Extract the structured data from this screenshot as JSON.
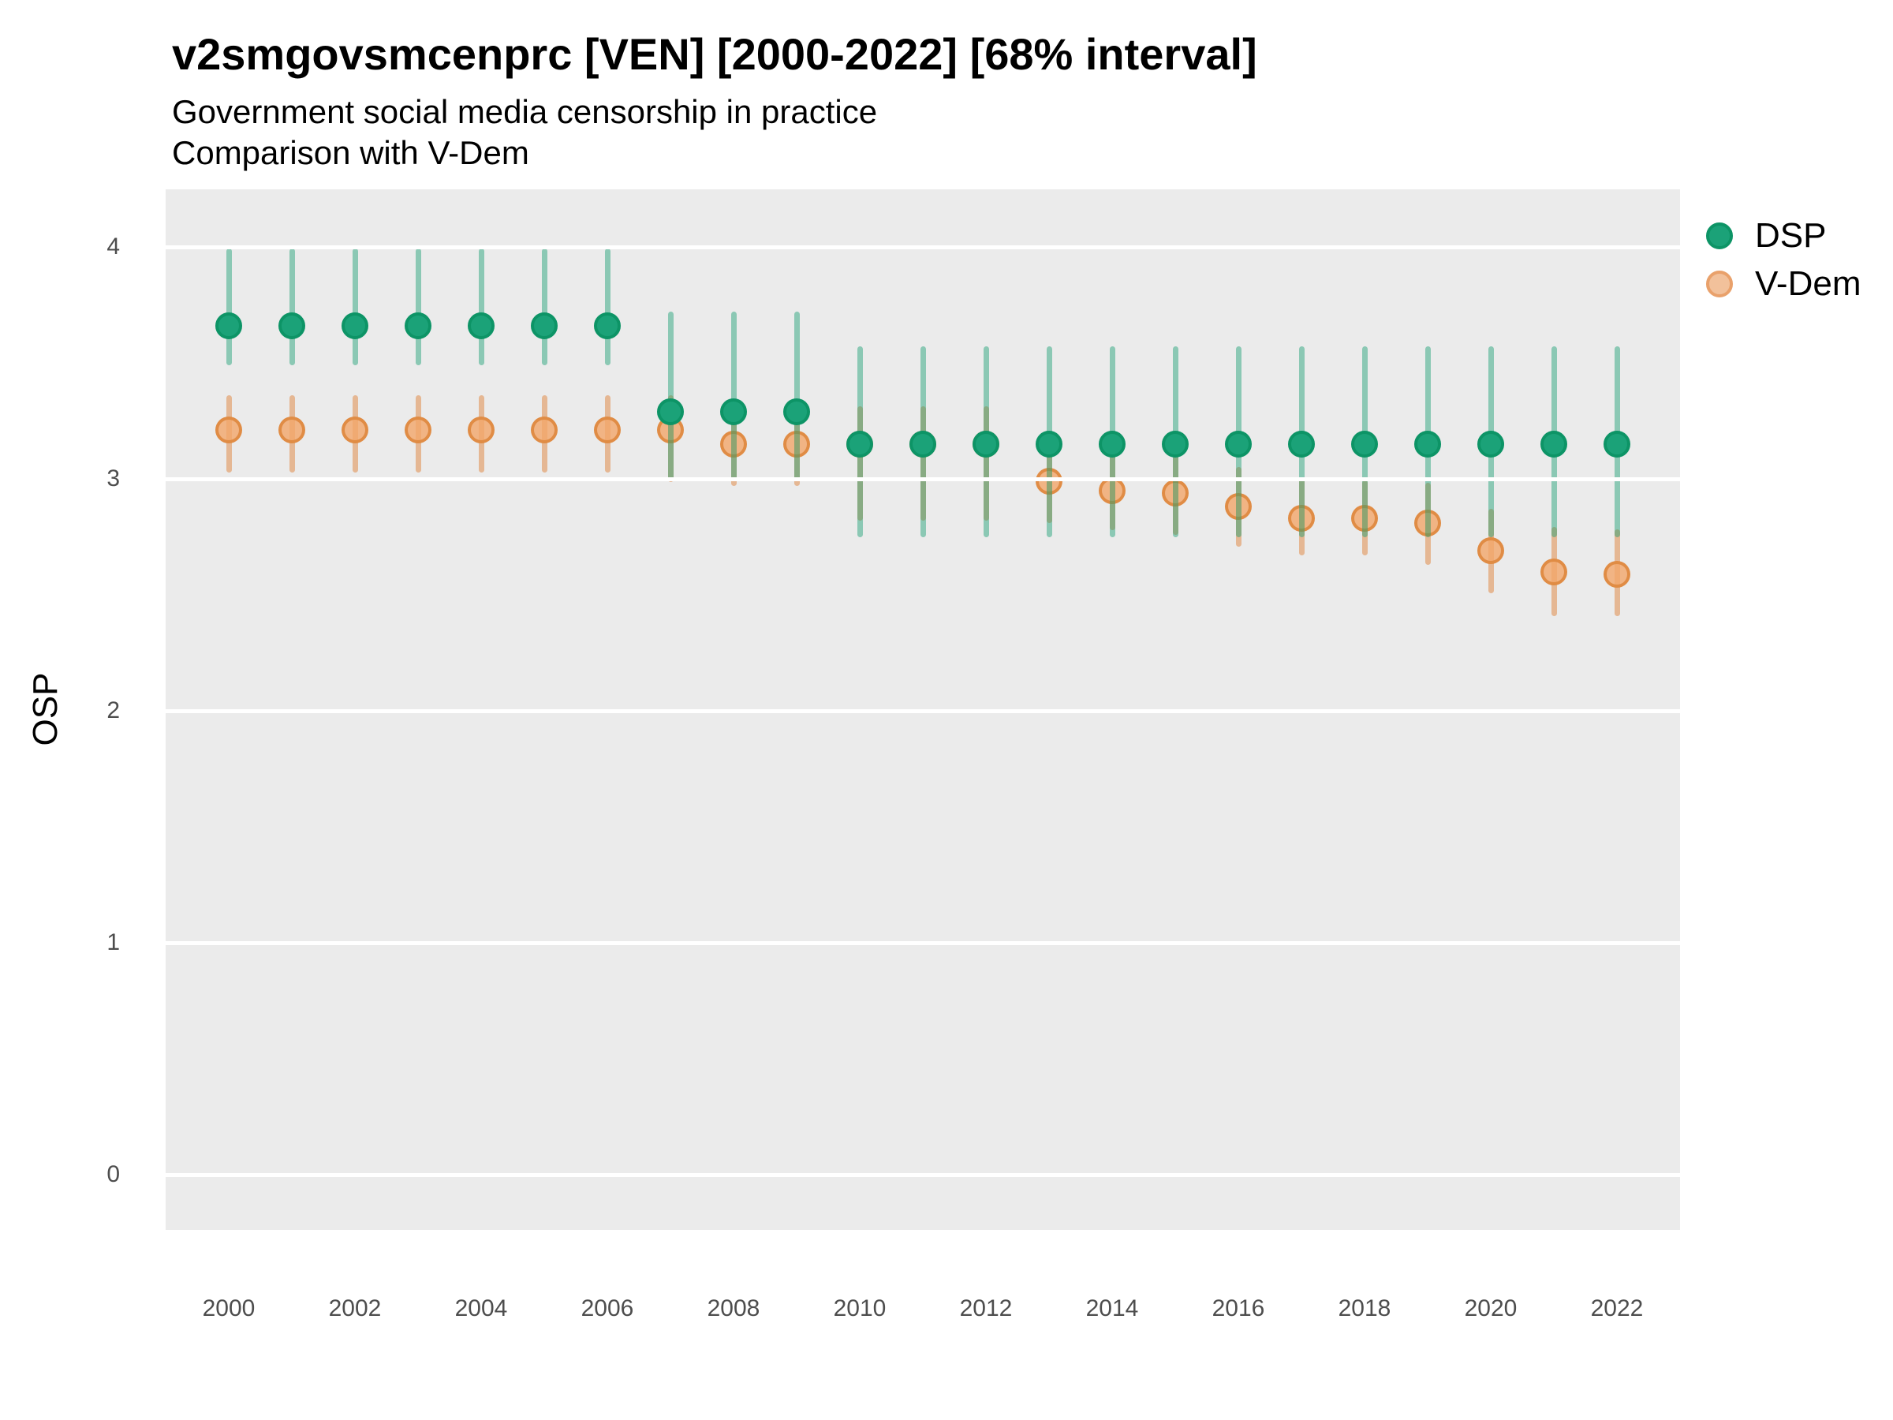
{
  "header": {
    "title": "v2smgovsmcenprc [VEN] [2000-2022] [68% interval]",
    "subtitle_line1": "Government social media censorship in practice",
    "subtitle_line2": "Comparison with V-Dem"
  },
  "y_axis": {
    "label": "OSP",
    "ticks": [
      4,
      3,
      2,
      1,
      0
    ]
  },
  "x_axis": {
    "ticks": [
      2000,
      2002,
      2004,
      2006,
      2008,
      2010,
      2012,
      2014,
      2016,
      2018,
      2020,
      2022
    ]
  },
  "legend": {
    "items": [
      {
        "label": "DSP"
      },
      {
        "label": "V-Dem"
      }
    ]
  },
  "colors": {
    "panel_bg": "#ebebeb",
    "gridline": "#ffffff",
    "dsp_fill": "#1BA278",
    "dsp_border": "#0D9466",
    "dsp_bar": "#179E7073",
    "vdem_fill": "#F2A66ACC",
    "vdem_border": "#DF8A42F2",
    "vdem_bar": "#E0843B80"
  },
  "chart_data": {
    "type": "scatter",
    "subtype": "pointrange",
    "title": "v2smgovsmcenprc [VEN] [2000-2022] [68% interval]",
    "subtitle": [
      "Government social media censorship in practice",
      "Comparison with V-Dem"
    ],
    "interval": "68%",
    "xlabel": "",
    "ylabel": "OSP",
    "ylim": [
      -0.24,
      4.25
    ],
    "yticks": [
      0,
      1,
      2,
      3,
      4
    ],
    "grid": "major-horizontal",
    "legend_position": "right",
    "x": [
      2000,
      2001,
      2002,
      2003,
      2004,
      2005,
      2006,
      2007,
      2008,
      2009,
      2010,
      2011,
      2012,
      2013,
      2014,
      2015,
      2016,
      2017,
      2018,
      2019,
      2020,
      2021,
      2022
    ],
    "series": [
      {
        "name": "DSP",
        "values": [
          3.66,
          3.66,
          3.66,
          3.66,
          3.66,
          3.66,
          3.66,
          3.29,
          3.29,
          3.29,
          3.15,
          3.15,
          3.15,
          3.15,
          3.15,
          3.15,
          3.15,
          3.15,
          3.15,
          3.15,
          3.15,
          3.15,
          3.15
        ],
        "lower": [
          3.5,
          3.5,
          3.5,
          3.5,
          3.5,
          3.5,
          3.5,
          3.01,
          3.01,
          3.01,
          2.76,
          2.76,
          2.76,
          2.76,
          2.76,
          2.76,
          2.76,
          2.76,
          2.76,
          2.76,
          2.76,
          2.76,
          2.76
        ],
        "upper": [
          3.98,
          3.98,
          3.98,
          3.98,
          3.98,
          3.98,
          3.98,
          3.71,
          3.71,
          3.71,
          3.56,
          3.56,
          3.56,
          3.56,
          3.56,
          3.56,
          3.56,
          3.56,
          3.56,
          3.56,
          3.56,
          3.56,
          3.56
        ]
      },
      {
        "name": "V-Dem",
        "values": [
          3.21,
          3.21,
          3.21,
          3.21,
          3.21,
          3.21,
          3.21,
          3.21,
          3.15,
          3.15,
          3.15,
          3.15,
          3.15,
          2.99,
          2.95,
          2.94,
          2.88,
          2.83,
          2.83,
          2.81,
          2.69,
          2.6,
          2.59
        ],
        "lower": [
          3.04,
          3.04,
          3.04,
          3.04,
          3.04,
          3.04,
          3.04,
          3.0,
          2.98,
          2.98,
          2.83,
          2.83,
          2.83,
          2.82,
          2.79,
          2.77,
          2.72,
          2.68,
          2.68,
          2.64,
          2.52,
          2.42,
          2.42
        ],
        "upper": [
          3.35,
          3.35,
          3.35,
          3.35,
          3.35,
          3.35,
          3.35,
          3.35,
          3.31,
          3.31,
          3.3,
          3.3,
          3.3,
          3.14,
          3.1,
          3.09,
          3.04,
          2.99,
          2.98,
          2.97,
          2.86,
          2.78,
          2.77
        ]
      }
    ]
  }
}
